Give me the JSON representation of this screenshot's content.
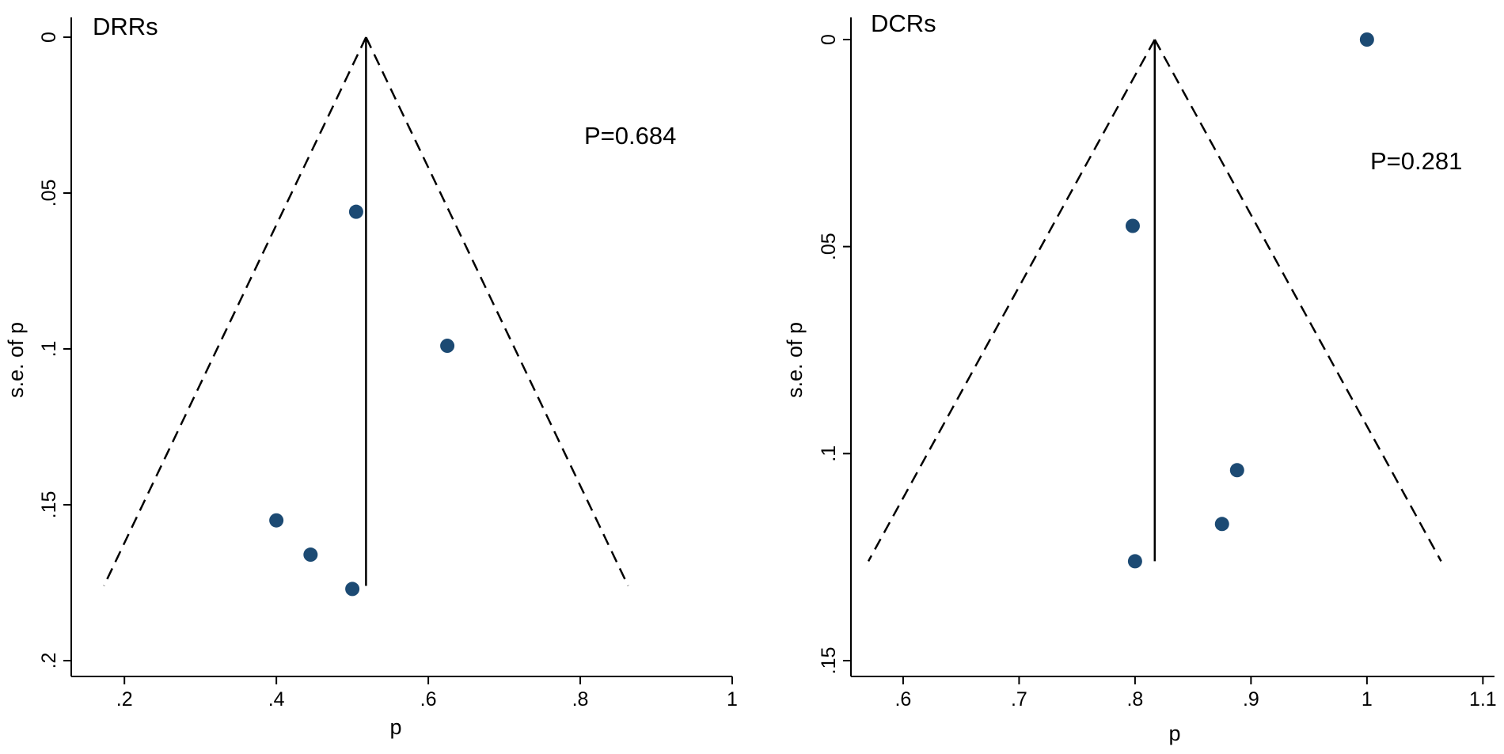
{
  "chart_data": [
    {
      "type": "scatter",
      "title": "DRRs",
      "xlabel": "p",
      "ylabel": "s.e. of p",
      "annotation": "P=0.684",
      "xlim": [
        0.13,
        1.0
      ],
      "ylim": [
        0,
        0.2
      ],
      "y_inverted": true,
      "x_ticks": [
        0.2,
        0.4,
        0.6,
        0.8,
        1
      ],
      "x_tick_labels": [
        ".2",
        ".4",
        ".6",
        ".8",
        "1"
      ],
      "y_ticks": [
        0,
        0.05,
        0.1,
        0.15,
        0.2
      ],
      "y_tick_labels": [
        "0",
        ".05",
        ".1",
        ".15",
        ".2"
      ],
      "pooled_estimate": 0.518,
      "funnel_max_se": 0.176,
      "points": [
        {
          "x": 0.505,
          "y": 0.056
        },
        {
          "x": 0.625,
          "y": 0.099
        },
        {
          "x": 0.4,
          "y": 0.155
        },
        {
          "x": 0.445,
          "y": 0.166
        },
        {
          "x": 0.5,
          "y": 0.177
        }
      ],
      "colors": {
        "marker": "#1c4a73"
      }
    },
    {
      "type": "scatter",
      "title": "DCRs",
      "xlabel": "p",
      "ylabel": "s.e. of p",
      "annotation": "P=0.281",
      "xlim": [
        0.555,
        1.11
      ],
      "ylim": [
        0,
        0.15
      ],
      "y_inverted": true,
      "x_ticks": [
        0.6,
        0.7,
        0.8,
        0.9,
        1,
        1.1
      ],
      "x_tick_labels": [
        ".6",
        ".7",
        ".8",
        ".9",
        "1",
        "1.1"
      ],
      "y_ticks": [
        0,
        0.05,
        0.1,
        0.15
      ],
      "y_tick_labels": [
        "0",
        ".05",
        ".1",
        ".15"
      ],
      "pooled_estimate": 0.817,
      "funnel_max_se": 0.126,
      "points": [
        {
          "x": 1.0,
          "y": 0.0
        },
        {
          "x": 0.798,
          "y": 0.045
        },
        {
          "x": 0.888,
          "y": 0.104
        },
        {
          "x": 0.875,
          "y": 0.117
        },
        {
          "x": 0.8,
          "y": 0.126
        }
      ],
      "colors": {
        "marker": "#1c4a73"
      }
    }
  ]
}
